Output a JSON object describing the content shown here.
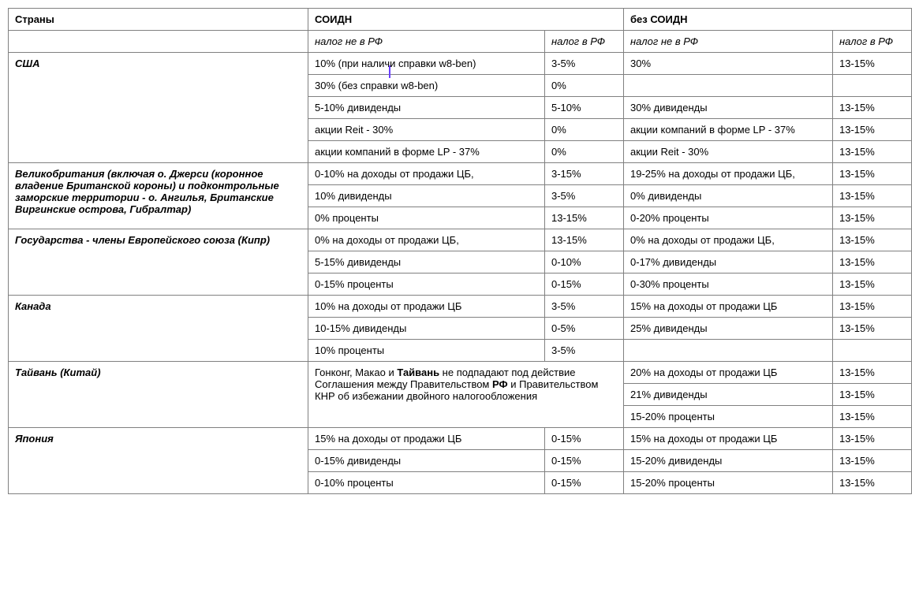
{
  "header": {
    "country": "Страны",
    "soidn": "СОИДН",
    "no_soidn": "без СОИДН"
  },
  "subheader": {
    "a": "налог не в РФ",
    "b": "налог в РФ",
    "c": "налог не в РФ",
    "d": "налог в РФ"
  },
  "usa": {
    "name": "США",
    "r1_a_pre": "10% (при налич",
    "r1_a_post": "и справки w8-ben)",
    "r1_b": "3-5%",
    "r1_c": "30%",
    "r1_d": "13-15%",
    "r2_a": "30% (без справки w8-ben)",
    "r2_b": "0%",
    "r3_a": "5-10% дивиденды",
    "r3_b": "5-10%",
    "r3_c": "30% дивиденды",
    "r3_d": "13-15%",
    "r4_a": "акции Reit - 30%",
    "r4_b": "0%",
    "r4_c": "акции компаний в форме LP - 37%",
    "r4_d": "13-15%",
    "r5_a": "акции компаний в форме LP - 37%",
    "r5_b": "0%",
    "r5_c": "акции Reit - 30%",
    "r5_d": "13-15%"
  },
  "uk": {
    "name": "Великобритания (включая о. Джерси (коронное владение Британской короны) и подконтрольные заморские территории - о. Ангилья, Британские Виргинские острова, Гибралтар)",
    "r1_a": "0-10% на доходы от продажи ЦБ,",
    "r1_b": "3-15%",
    "r1_c": "19-25% на доходы от продажи ЦБ,",
    "r1_d": "13-15%",
    "r2_a": "10% дивиденды",
    "r2_b": "3-5%",
    "r2_c": "0% дивиденды",
    "r2_d": "13-15%",
    "r3_a": "0% проценты",
    "r3_b": "13-15%",
    "r3_c": "0-20% проценты",
    "r3_d": "13-15%"
  },
  "eu": {
    "name": "Государства - члены Европейского союза (Кипр)",
    "r1_a": "0% на доходы от продажи ЦБ,",
    "r1_b": "13-15%",
    "r1_c": "0% на доходы от продажи ЦБ,",
    "r1_d": "13-15%",
    "r2_a": "5-15% дивиденды",
    "r2_b": "0-10%",
    "r2_c": "0-17% дивиденды",
    "r2_d": "13-15%",
    "r3_a": "0-15% проценты",
    "r3_b": "0-15%",
    "r3_c": "0-30% проценты",
    "r3_d": "13-15%"
  },
  "canada": {
    "name": "Канада",
    "r1_a": "10% на доходы от продажи ЦБ",
    "r1_b": "3-5%",
    "r1_c": "15% на доходы от продажи ЦБ",
    "r1_d": "13-15%",
    "r2_a": "10-15% дивиденды",
    "r2_b": "0-5%",
    "r2_c": "25% дивиденды",
    "r2_d": "13-15%",
    "r3_a": "10% проценты",
    "r3_b": "3-5%"
  },
  "taiwan": {
    "name": "Тайвань (Китай)",
    "note_p1": "Гонконг, Макао и ",
    "note_b1": "Тайвань",
    "note_p2": " не подпадают под действие Соглашения между Правительством ",
    "note_b2": "РФ",
    "note_p3": " и Правительством КНР об избежании двойного налогообложения",
    "r1_c": "20% на доходы от продажи ЦБ",
    "r1_d": "13-15%",
    "r2_c": "21% дивиденды",
    "r2_d": "13-15%",
    "r3_c": "15-20% проценты",
    "r3_d": "13-15%"
  },
  "japan": {
    "name": "Япония",
    "r1_a": " 15% на доходы от продажи ЦБ",
    "r1_b": "0-15%",
    "r1_c": " 15% на доходы от продажи ЦБ",
    "r1_d": "13-15%",
    "r2_a": " 0-15% дивиденды",
    "r2_b": "0-15%",
    "r2_c": " 15-20% дивиденды",
    "r2_d": "13-15%",
    "r3_a": "0-10% проценты",
    "r3_b": "0-15%",
    "r3_c": " 15-20% проценты",
    "r3_d": "13-15%"
  }
}
